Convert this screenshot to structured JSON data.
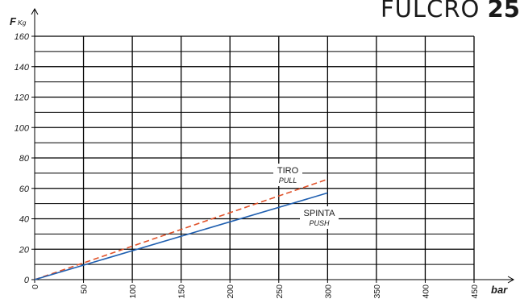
{
  "header": {
    "title_prefix": "FULCRO",
    "title_number": "25"
  },
  "chart_data": {
    "type": "line",
    "xlabel": "bar",
    "ylabel": "F",
    "ylabel_unit": "Kg",
    "xlim": [
      0,
      450
    ],
    "ylim": [
      0,
      160
    ],
    "x_ticks": [
      0,
      50,
      100,
      150,
      200,
      250,
      300,
      350,
      400,
      450
    ],
    "y_ticks": [
      0,
      20,
      40,
      60,
      80,
      100,
      120,
      140,
      160
    ],
    "series": [
      {
        "name": "TIRO",
        "name_en": "PULL",
        "color": "#e0522a",
        "style": "dashed",
        "points": [
          [
            0,
            0
          ],
          [
            300,
            66
          ]
        ]
      },
      {
        "name": "SPINTA",
        "name_en": "PUSH",
        "color": "#1f5fb0",
        "style": "solid",
        "points": [
          [
            0,
            0
          ],
          [
            300,
            57
          ]
        ]
      }
    ],
    "grid": true,
    "colors": {
      "grid": "#000000",
      "axis": "#000000",
      "text": "#1a1a1a"
    }
  }
}
